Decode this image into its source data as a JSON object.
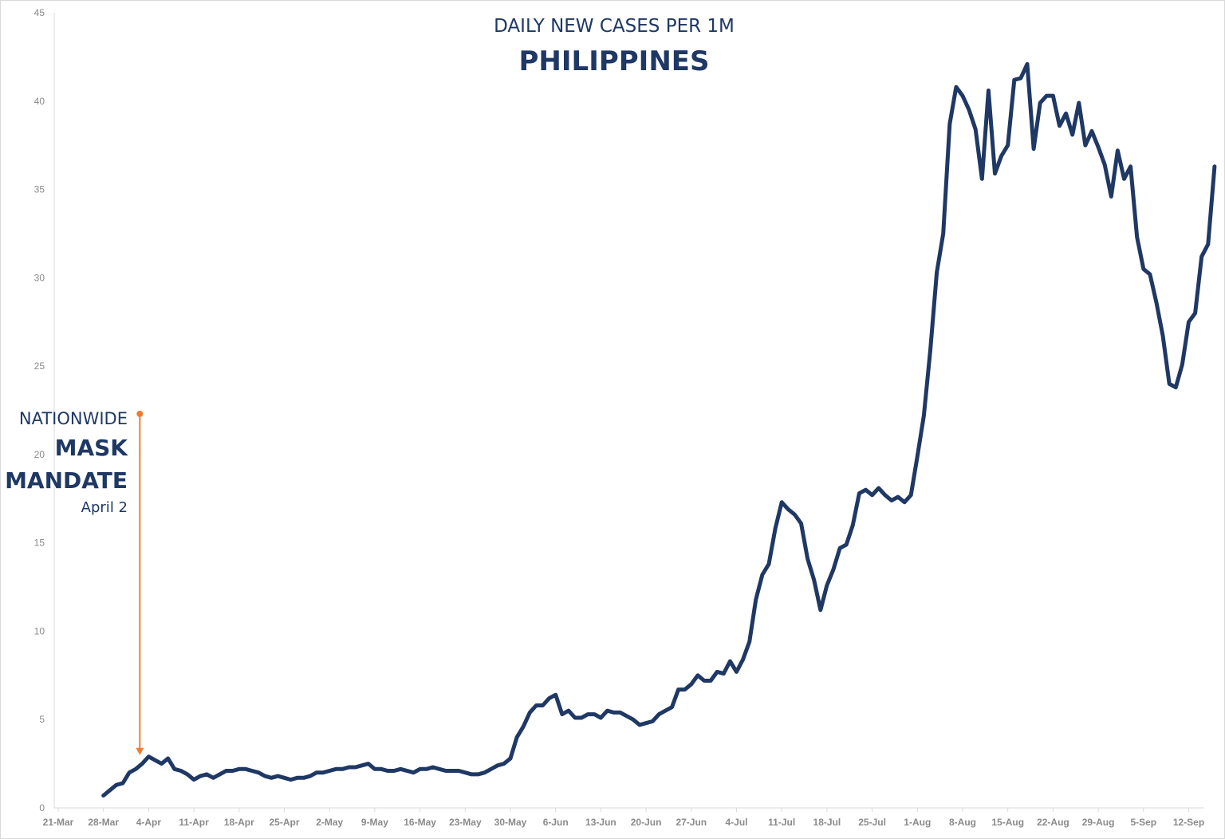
{
  "chart_data": {
    "type": "line",
    "title": "DAILY NEW CASES PER 1M",
    "subtitle": "PHILIPPINES",
    "xlabel": "",
    "ylabel": "",
    "ylim": [
      0,
      45
    ],
    "yticks": [
      0,
      5,
      10,
      15,
      20,
      25,
      30,
      35,
      40,
      45
    ],
    "xticks": [
      "21-Mar",
      "28-Mar",
      "4-Apr",
      "11-Apr",
      "18-Apr",
      "25-Apr",
      "2-May",
      "9-May",
      "16-May",
      "23-May",
      "30-May",
      "6-Jun",
      "13-Jun",
      "20-Jun",
      "27-Jun",
      "4-Jul",
      "11-Jul",
      "18-Jul",
      "25-Jul",
      "1-Aug",
      "8-Aug",
      "15-Aug",
      "22-Aug",
      "29-Aug",
      "5-Sep",
      "12-Sep"
    ],
    "grid": false,
    "x_start": "21-Mar",
    "series": [
      {
        "name": "",
        "color": "#1f3864",
        "x_start_day": 7,
        "values": [
          0.7,
          1.0,
          1.3,
          1.4,
          2.0,
          2.2,
          2.5,
          2.9,
          2.7,
          2.5,
          2.8,
          2.2,
          2.1,
          1.9,
          1.6,
          1.8,
          1.9,
          1.7,
          1.9,
          2.1,
          2.1,
          2.2,
          2.2,
          2.1,
          2.0,
          1.8,
          1.7,
          1.8,
          1.7,
          1.6,
          1.7,
          1.7,
          1.8,
          2.0,
          2.0,
          2.1,
          2.2,
          2.2,
          2.3,
          2.3,
          2.4,
          2.5,
          2.2,
          2.2,
          2.1,
          2.1,
          2.2,
          2.1,
          2.0,
          2.2,
          2.2,
          2.3,
          2.2,
          2.1,
          2.1,
          2.1,
          2.0,
          1.9,
          1.9,
          2.0,
          2.2,
          2.4,
          2.5,
          2.8,
          4.0,
          4.6,
          5.4,
          5.8,
          5.8,
          6.2,
          6.4,
          5.3,
          5.5,
          5.1,
          5.1,
          5.3,
          5.3,
          5.1,
          5.5,
          5.4,
          5.4,
          5.2,
          5.0,
          4.7,
          4.8,
          4.9,
          5.3,
          5.5,
          5.7,
          6.7,
          6.7,
          7.0,
          7.5,
          7.2,
          7.2,
          7.7,
          7.6,
          8.3,
          7.7,
          8.4,
          9.4,
          11.8,
          13.2,
          13.8,
          15.8,
          17.3,
          16.9,
          16.6,
          16.1,
          14.1,
          12.9,
          11.2,
          12.6,
          13.5,
          14.7,
          14.9,
          16.0,
          17.8,
          18.0,
          17.7,
          18.1,
          17.7,
          17.4,
          17.6,
          17.3,
          17.7,
          19.9,
          22.2,
          25.9,
          30.3,
          32.5,
          38.7,
          40.8,
          40.3,
          39.5,
          38.4,
          35.6,
          40.6,
          35.9,
          36.9,
          37.5,
          41.2,
          41.3,
          42.1,
          37.3,
          39.9,
          40.3,
          40.3,
          38.6,
          39.3,
          38.1,
          39.9,
          37.5,
          38.3,
          37.4,
          36.4,
          34.6,
          37.2,
          35.6,
          36.3,
          32.3,
          30.5,
          30.2,
          28.6,
          26.7,
          24.0,
          23.8,
          25.1,
          27.5,
          28.0,
          31.2,
          31.9,
          36.3
        ]
      }
    ],
    "annotation": {
      "line1": "NATIONWIDE",
      "line2": "MASK",
      "line3": "MANDATE",
      "line4": "April 2",
      "x_day": 13,
      "y_top": 22.3,
      "y_bottom": 2.9,
      "color": "#ed7d31"
    }
  }
}
